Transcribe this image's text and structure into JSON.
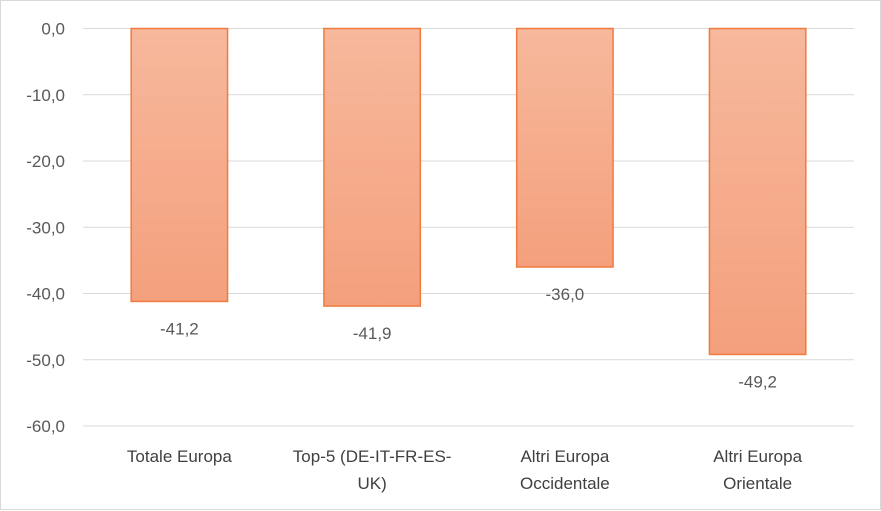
{
  "chart_data": {
    "type": "bar",
    "categories": [
      [
        "Totale Europa"
      ],
      [
        "Top-5 (DE-IT-FR-ES-",
        "UK)"
      ],
      [
        "Altri Europa",
        "Occidentale"
      ],
      [
        "Altri Europa",
        "Orientale"
      ]
    ],
    "values": [
      -41.2,
      -41.9,
      -36.0,
      -49.2
    ],
    "data_labels": [
      "-41,2",
      "-41,9",
      "-36,0",
      "-49,2"
    ],
    "y_ticks": [
      0,
      -10,
      -20,
      -30,
      -40,
      -50,
      -60
    ],
    "y_tick_labels": [
      "0,0",
      "-10,0",
      "-20,0",
      "-30,0",
      "-40,0",
      "-50,0",
      "-60,0"
    ],
    "ylim": [
      -60,
      0
    ],
    "grid": true,
    "bar_color_top": "#f7b89c",
    "bar_color_bottom": "#f4a07c",
    "bar_border_color": "#f07b3f"
  }
}
